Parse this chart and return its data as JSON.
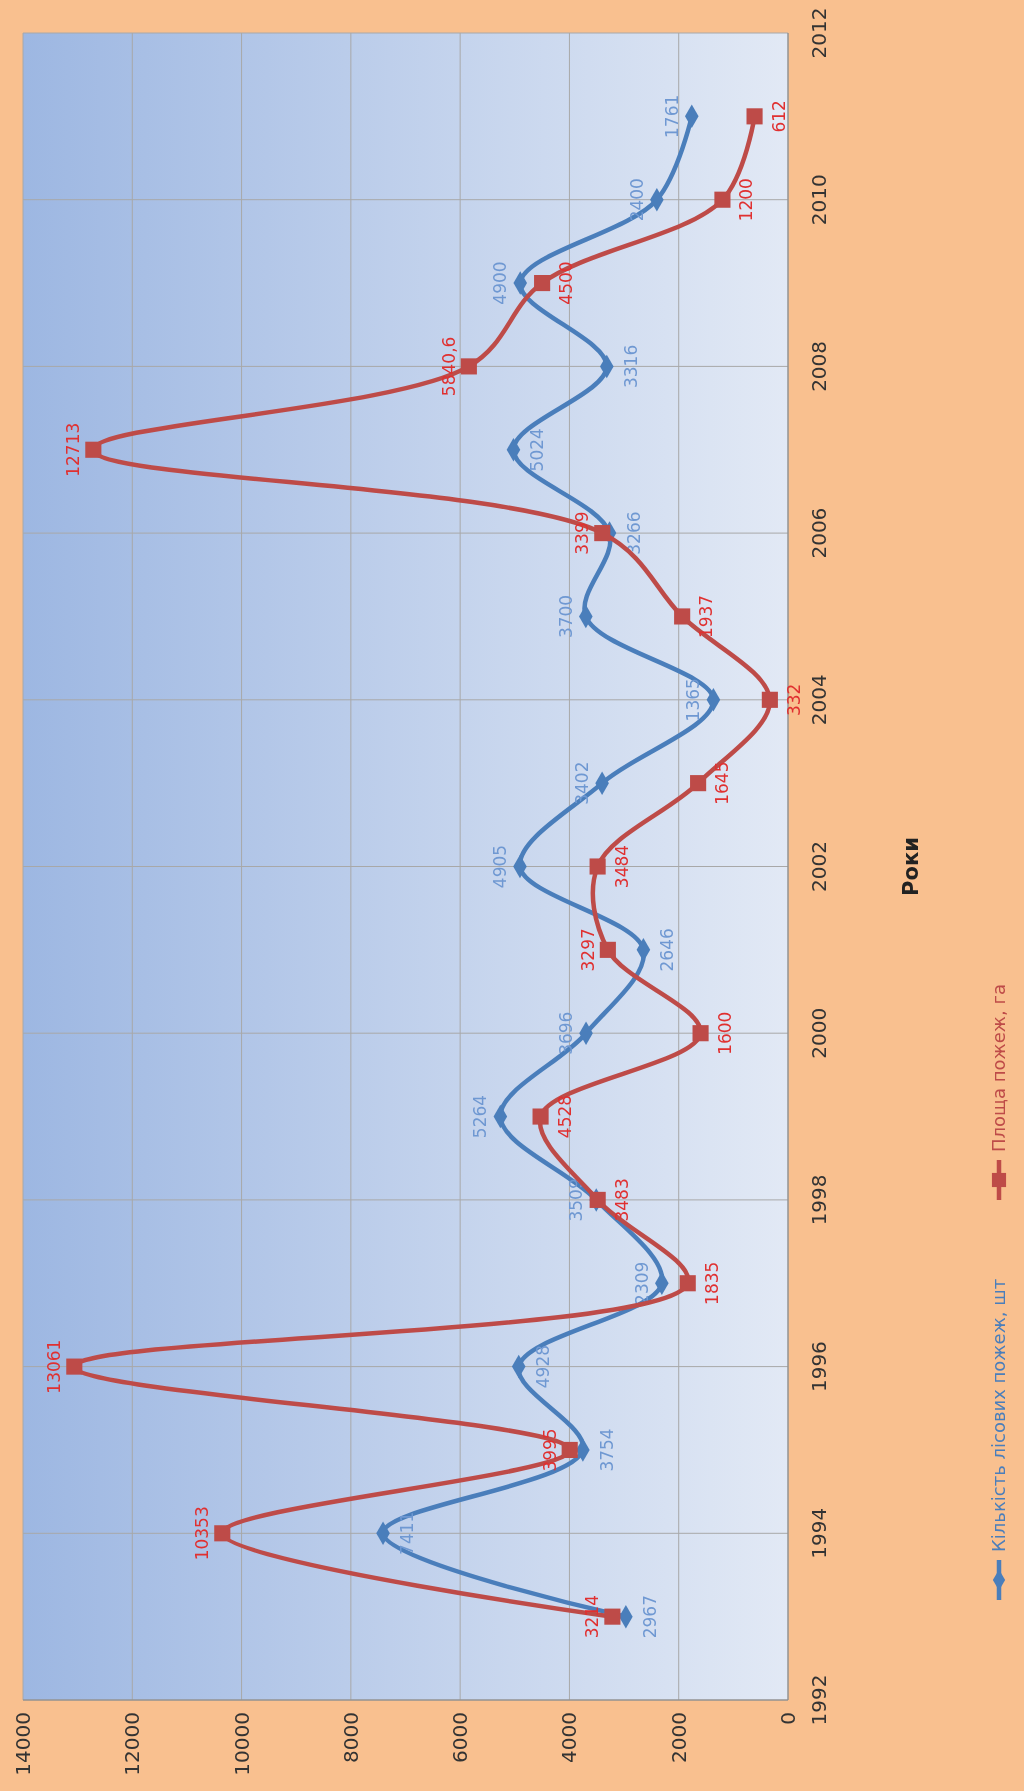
{
  "chart_data": {
    "type": "line",
    "orientation": "horizontal",
    "ylabel": "Роки",
    "x": [
      1993,
      1994,
      1995,
      1996,
      1997,
      1998,
      1999,
      2000,
      2001,
      2002,
      2003,
      2004,
      2005,
      2006,
      2007,
      2008,
      2009,
      2010,
      2011
    ],
    "ylim": [
      1992,
      2012
    ],
    "yticks": [
      1992,
      1994,
      1996,
      1998,
      2000,
      2002,
      2004,
      2006,
      2008,
      2010,
      2012
    ],
    "xlim": [
      14000,
      0
    ],
    "xticks": [
      14000,
      12000,
      10000,
      8000,
      6000,
      4000,
      2000,
      0
    ],
    "grid": true,
    "legend": "right",
    "series": [
      {
        "name": "Кількість лісових пожеж, шт",
        "color": "#4a7ebb",
        "marker": "diamond",
        "values": [
          2967,
          7411,
          3754,
          4928,
          2309,
          3509,
          5264,
          3696,
          2646,
          4905,
          3402,
          1365,
          3700,
          3266,
          5024,
          3316,
          4900,
          2400,
          1761
        ],
        "value_labels": [
          "2967",
          "7411",
          "3754",
          "4928",
          "2309",
          "3509",
          "5264",
          "3696",
          "2646",
          "4905",
          "3402",
          "1365",
          "3700",
          "3266",
          "5024",
          "3316",
          "4900",
          "2400",
          "1761"
        ]
      },
      {
        "name": "Площа пожеж, га",
        "color": "#be4b48",
        "marker": "square",
        "values": [
          3214,
          10353,
          3995,
          13061,
          1835,
          3483,
          4528,
          1600,
          3297,
          3484,
          1645,
          332,
          1937,
          3399,
          12713,
          5840.6,
          4500,
          1200,
          612
        ],
        "value_labels": [
          "3214",
          "10353",
          "3995",
          "13061",
          "1835",
          "3483",
          "4528",
          "1600",
          "3297",
          "3484",
          "1645",
          "332",
          "1937",
          "3399",
          "12713",
          "5840,6",
          "4500",
          "1200",
          "612"
        ]
      }
    ]
  }
}
